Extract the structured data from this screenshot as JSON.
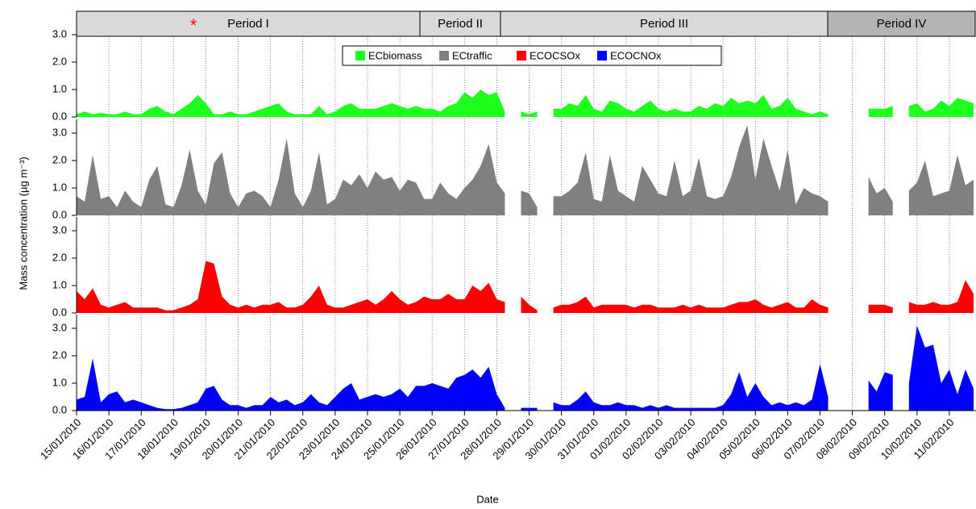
{
  "chart_data": {
    "type": "area",
    "y_label": "Mass concentration (µg m⁻³)",
    "x_label": "Date",
    "marker": "*",
    "periods": [
      "Period I",
      "Period II",
      "Period III",
      "Period IV"
    ],
    "ylim": [
      0,
      3.5
    ],
    "yticks": [
      {
        "value": 0,
        "label": "0.0"
      },
      {
        "value": 1,
        "label": "1.0"
      },
      {
        "value": 2,
        "label": "2.0"
      },
      {
        "value": 3,
        "label": "3.0"
      }
    ],
    "categories": [
      "15/01/2010",
      null,
      null,
      null,
      "16/01/2010",
      null,
      null,
      null,
      "17/01/2010",
      null,
      null,
      null,
      "18/01/2010",
      null,
      null,
      null,
      "19/01/2010",
      null,
      null,
      null,
      "20/01/2010",
      null,
      null,
      null,
      "21/01/2010",
      null,
      null,
      null,
      "22/01/2010",
      null,
      null,
      null,
      "23/01/2010",
      null,
      null,
      null,
      "24/01/2010",
      null,
      null,
      null,
      "25/01/2010",
      null,
      null,
      null,
      "26/01/2010",
      null,
      null,
      null,
      "27/01/2010",
      null,
      null,
      null,
      "28/01/2010",
      null,
      null,
      null,
      "29/01/2010",
      null,
      null,
      null,
      "30/01/2010",
      null,
      null,
      null,
      "31/01/2010",
      null,
      null,
      null,
      "01/02/2010",
      null,
      null,
      null,
      "02/02/2010",
      null,
      null,
      null,
      "03/02/2010",
      null,
      null,
      null,
      "04/02/2010",
      null,
      null,
      null,
      "05/02/2010",
      null,
      null,
      null,
      "06/02/2010",
      null,
      null,
      null,
      "07/02/2010",
      null,
      null,
      null,
      "08/02/2010",
      null,
      null,
      null,
      "09/02/2010",
      null,
      null,
      null,
      "10/02/2010",
      null,
      null,
      null,
      "11/02/2010",
      null,
      null,
      null
    ],
    "series": [
      {
        "name": "ECbiomass",
        "color": "#1eff1e",
        "values": [
          0.1,
          0.2,
          0.1,
          0.15,
          0.1,
          0.1,
          0.2,
          0.1,
          0.1,
          0.3,
          0.4,
          0.2,
          0.1,
          0.3,
          0.5,
          0.8,
          0.5,
          0.1,
          0.1,
          0.2,
          0.1,
          0.1,
          0.2,
          0.3,
          0.4,
          0.5,
          0.2,
          0.1,
          0.1,
          0.1,
          0.4,
          0.1,
          0.2,
          0.4,
          0.5,
          0.3,
          0.3,
          0.3,
          0.4,
          0.5,
          0.4,
          0.3,
          0.4,
          0.3,
          0.3,
          0.2,
          0.4,
          0.5,
          0.9,
          0.7,
          1.0,
          0.8,
          0.9,
          0.2,
          null,
          0.2,
          0.1,
          0.2,
          null,
          0.3,
          0.3,
          0.5,
          0.4,
          0.8,
          0.3,
          0.2,
          0.6,
          0.5,
          0.3,
          0.2,
          0.4,
          0.6,
          0.3,
          0.2,
          0.3,
          0.2,
          0.2,
          0.4,
          0.3,
          0.5,
          0.4,
          0.7,
          0.5,
          0.6,
          0.5,
          0.8,
          0.3,
          0.4,
          0.7,
          0.3,
          0.2,
          0.1,
          0.2,
          0.1,
          null,
          null,
          null,
          null,
          0.3,
          0.3,
          0.3,
          0.4,
          null,
          0.4,
          0.5,
          0.2,
          0.3,
          0.6,
          0.4,
          0.7,
          0.6,
          0.5
        ]
      },
      {
        "name": "ECtraffic",
        "color": "#808080",
        "values": [
          0.7,
          0.5,
          2.2,
          0.6,
          0.7,
          0.3,
          0.9,
          0.5,
          0.3,
          1.3,
          1.8,
          0.4,
          0.3,
          1.1,
          2.4,
          0.9,
          0.4,
          1.9,
          2.3,
          0.8,
          0.3,
          0.8,
          0.9,
          0.7,
          0.3,
          1.3,
          2.8,
          0.8,
          0.3,
          0.9,
          2.3,
          0.4,
          0.6,
          1.3,
          1.1,
          1.5,
          1.0,
          1.6,
          1.3,
          1.4,
          0.9,
          1.3,
          1.2,
          0.6,
          0.6,
          1.2,
          0.8,
          0.6,
          1.0,
          1.3,
          1.8,
          2.6,
          1.2,
          0.8,
          null,
          0.9,
          0.8,
          0.3,
          null,
          0.7,
          0.7,
          0.9,
          1.2,
          2.3,
          0.6,
          0.5,
          2.2,
          0.9,
          0.7,
          0.5,
          1.8,
          1.3,
          0.8,
          0.7,
          2.0,
          0.7,
          0.9,
          2.1,
          0.7,
          0.6,
          0.7,
          1.4,
          2.5,
          3.3,
          1.3,
          2.8,
          1.8,
          0.9,
          2.4,
          0.4,
          1.0,
          0.8,
          0.7,
          0.5,
          null,
          null,
          null,
          null,
          1.4,
          0.8,
          1.0,
          0.5,
          null,
          0.9,
          1.2,
          2.0,
          0.7,
          0.8,
          0.9,
          2.2,
          1.1,
          1.3
        ]
      },
      {
        "name": "ECOCSOx",
        "color": "#ff0000",
        "values": [
          0.8,
          0.5,
          0.9,
          0.3,
          0.2,
          0.3,
          0.4,
          0.2,
          0.2,
          0.2,
          0.2,
          0.1,
          0.1,
          0.2,
          0.3,
          0.5,
          1.9,
          1.8,
          0.6,
          0.3,
          0.2,
          0.3,
          0.2,
          0.3,
          0.3,
          0.4,
          0.2,
          0.2,
          0.3,
          0.6,
          1.0,
          0.3,
          0.2,
          0.2,
          0.3,
          0.4,
          0.5,
          0.3,
          0.5,
          0.8,
          0.5,
          0.3,
          0.4,
          0.6,
          0.5,
          0.5,
          0.7,
          0.5,
          0.5,
          1.0,
          0.8,
          1.1,
          0.5,
          0.4,
          null,
          0.6,
          0.3,
          0.1,
          null,
          0.2,
          0.3,
          0.3,
          0.4,
          0.6,
          0.2,
          0.3,
          0.3,
          0.3,
          0.3,
          0.2,
          0.3,
          0.3,
          0.2,
          0.2,
          0.2,
          0.3,
          0.2,
          0.3,
          0.2,
          0.2,
          0.2,
          0.3,
          0.4,
          0.4,
          0.5,
          0.3,
          0.2,
          0.3,
          0.4,
          0.2,
          0.2,
          0.5,
          0.3,
          0.2,
          null,
          null,
          null,
          null,
          0.3,
          0.3,
          0.3,
          0.2,
          null,
          0.4,
          0.3,
          0.3,
          0.4,
          0.3,
          0.3,
          0.4,
          1.2,
          0.7
        ]
      },
      {
        "name": "ECOCNOx",
        "color": "#0000ff",
        "values": [
          0.4,
          0.5,
          1.9,
          0.3,
          0.6,
          0.7,
          0.3,
          0.4,
          0.3,
          0.2,
          0.1,
          0.05,
          0.05,
          0.1,
          0.2,
          0.3,
          0.8,
          0.9,
          0.4,
          0.2,
          0.2,
          0.1,
          0.2,
          0.2,
          0.5,
          0.3,
          0.4,
          0.2,
          0.3,
          0.6,
          0.3,
          0.2,
          0.5,
          0.8,
          1.0,
          0.4,
          0.5,
          0.6,
          0.5,
          0.6,
          0.8,
          0.5,
          0.9,
          0.9,
          1.0,
          0.9,
          0.8,
          1.2,
          1.3,
          1.5,
          1.2,
          1.6,
          0.6,
          0.1,
          null,
          0.1,
          0.1,
          0.1,
          null,
          0.3,
          0.2,
          0.2,
          0.4,
          0.7,
          0.3,
          0.2,
          0.2,
          0.3,
          0.2,
          0.2,
          0.1,
          0.2,
          0.1,
          0.2,
          0.1,
          0.1,
          0.1,
          0.1,
          0.1,
          0.1,
          0.2,
          0.6,
          1.4,
          0.5,
          1.0,
          0.5,
          0.2,
          0.3,
          0.2,
          0.3,
          0.2,
          0.4,
          1.7,
          0.5,
          null,
          null,
          null,
          null,
          1.1,
          0.7,
          1.4,
          1.3,
          null,
          1.0,
          3.1,
          2.3,
          2.4,
          1.0,
          1.5,
          0.6,
          1.5,
          0.8
        ]
      }
    ]
  }
}
